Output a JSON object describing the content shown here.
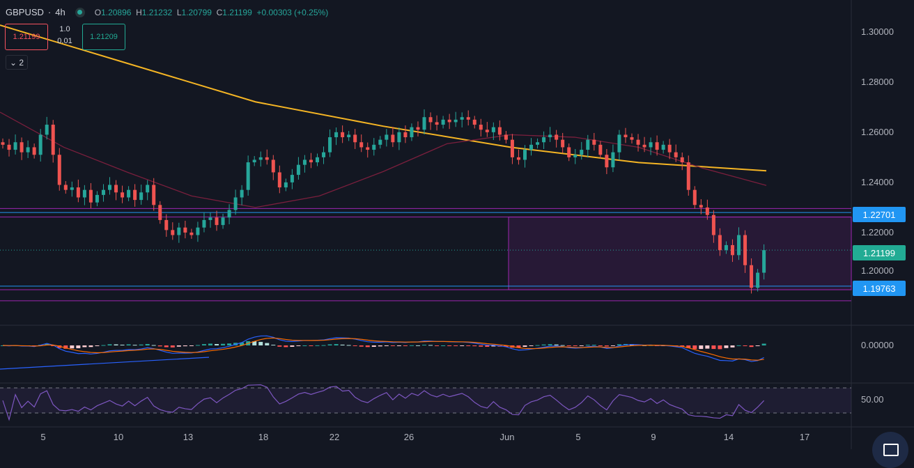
{
  "header": {
    "symbol": "GBPUSD",
    "interval": "4h",
    "open_label": "O",
    "open": "1.20896",
    "high_label": "H",
    "high": "1.21232",
    "low_label": "L",
    "low": "1.20799",
    "close_label": "C",
    "close": "1.21199",
    "change": "+0.00303 (+0.25%)"
  },
  "trade": {
    "sell": "1.21199",
    "qty_top": "1.0",
    "qty_bottom": "0.01",
    "buy": "1.21209"
  },
  "collapse_label": "2",
  "price_axis": {
    "ticks": [
      "1.30000",
      "1.28000",
      "1.26000",
      "1.24000",
      "1.22000"
    ],
    "tick_values": [
      1.3,
      1.28,
      1.26,
      1.24,
      1.22
    ],
    "hidden_tick": "1.20000",
    "level_high": "1.22701",
    "current": "1.21199",
    "level_low": "1.19763"
  },
  "macd_axis": {
    "zero": "0.00000"
  },
  "rsi_axis": {
    "mid": "50.00"
  },
  "time_axis": [
    "5",
    "10",
    "13",
    "18",
    "22",
    "26",
    "Jun",
    "5",
    "9",
    "14",
    "17"
  ],
  "colors": {
    "bg": "#131722",
    "up": "#26a69a",
    "down": "#ef5350",
    "ma200": "#f5b524",
    "ma50": "#7a1f3d",
    "zone": "#9c27b0",
    "level": "#2196f3",
    "rsi": "#7e57c2"
  },
  "chart_data": {
    "type": "candlestick",
    "closes": [
      1.254,
      1.252,
      1.255,
      1.251,
      1.253,
      1.25,
      1.258,
      1.262,
      1.25,
      1.238,
      1.236,
      1.237,
      1.233,
      1.236,
      1.231,
      1.234,
      1.236,
      1.238,
      1.235,
      1.233,
      1.236,
      1.232,
      1.235,
      1.238,
      1.23,
      1.224,
      1.22,
      1.218,
      1.221,
      1.219,
      1.218,
      1.221,
      1.224,
      1.225,
      1.222,
      1.225,
      1.228,
      1.233,
      1.236,
      1.247,
      1.248,
      1.249,
      1.248,
      1.243,
      1.237,
      1.239,
      1.242,
      1.246,
      1.248,
      1.247,
      1.249,
      1.251,
      1.257,
      1.259,
      1.257,
      1.258,
      1.255,
      1.253,
      1.252,
      1.254,
      1.256,
      1.258,
      1.255,
      1.259,
      1.257,
      1.261,
      1.26,
      1.265,
      1.263,
      1.262,
      1.264,
      1.263,
      1.264,
      1.265,
      1.264,
      1.262,
      1.26,
      1.259,
      1.261,
      1.258,
      1.256,
      1.249,
      1.248,
      1.252,
      1.254,
      1.255,
      1.257,
      1.258,
      1.256,
      1.253,
      1.249,
      1.25,
      1.252,
      1.256,
      1.254,
      1.25,
      1.245,
      1.251,
      1.258,
      1.257,
      1.256,
      1.254,
      1.253,
      1.255,
      1.252,
      1.254,
      1.251,
      1.249,
      1.247,
      1.236,
      1.23,
      1.229,
      1.226,
      1.218,
      1.212,
      1.214,
      1.21,
      1.218,
      1.206,
      1.197,
      1.203,
      1.212
    ],
    "ma_long": [
      1.3017,
      1.2864,
      1.2711,
      1.2614,
      1.253,
      1.2469,
      1.2436
    ],
    "ma_short": [
      1.267,
      1.253,
      1.243,
      1.2336,
      1.229,
      1.2336,
      1.2433,
      1.2544,
      1.258,
      1.257,
      1.253,
      1.2447,
      1.2378
    ],
    "levels": {
      "zone_top": 1.2286,
      "level_high": 1.22701,
      "zone_mid": 1.2252,
      "level_low": 1.19763,
      "zone_low": 1.1962,
      "zone_bottom": 1.1918
    },
    "yrange": [
      1.184,
      1.3117
    ]
  }
}
